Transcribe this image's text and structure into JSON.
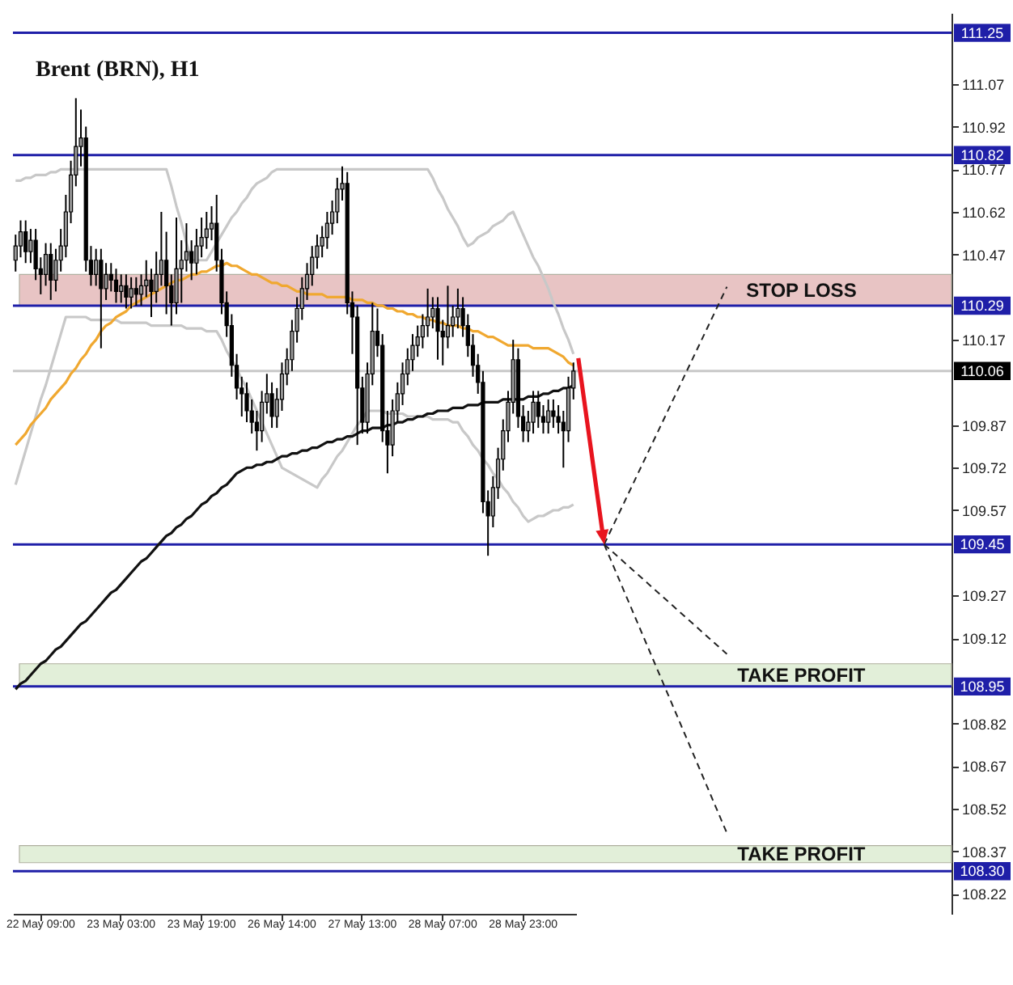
{
  "chart_data": {
    "type": "candlestick",
    "title": "Brent (BRN), H1",
    "categories": [
      null,
      null,
      null,
      null,
      null,
      "22 May 09:00",
      null,
      null,
      null,
      null,
      null,
      null,
      null,
      null,
      null,
      null,
      null,
      null,
      null,
      null,
      null,
      "23 May 03:00",
      null,
      null,
      null,
      null,
      null,
      null,
      null,
      null,
      null,
      null,
      null,
      null,
      null,
      null,
      null,
      "23 May 19:00",
      null,
      null,
      null,
      null,
      null,
      null,
      null,
      null,
      null,
      null,
      null,
      null,
      null,
      null,
      null,
      "26 May 14:00",
      null,
      null,
      null,
      null,
      null,
      null,
      null,
      null,
      null,
      null,
      null,
      null,
      null,
      null,
      null,
      "27 May 13:00",
      null,
      null,
      null,
      null,
      null,
      null,
      null,
      null,
      null,
      null,
      null,
      null,
      null,
      null,
      null,
      "28 May 07:00",
      null,
      null,
      null,
      null,
      null,
      null,
      null,
      null,
      null,
      null,
      null,
      null,
      null,
      null,
      null,
      "28 May 23:00",
      null,
      null,
      null,
      null,
      null,
      null,
      null,
      null,
      null,
      null
    ],
    "ohlc": [
      [
        110.45,
        110.54,
        110.41,
        110.5
      ],
      [
        110.5,
        110.59,
        110.46,
        110.55
      ],
      [
        110.55,
        110.59,
        110.44,
        110.48
      ],
      [
        110.48,
        110.56,
        110.44,
        110.52
      ],
      [
        110.52,
        110.56,
        110.38,
        110.42
      ],
      [
        110.42,
        110.46,
        110.33,
        110.4
      ],
      [
        110.4,
        110.51,
        110.36,
        110.47
      ],
      [
        110.47,
        110.51,
        110.31,
        110.38
      ],
      [
        110.38,
        110.49,
        110.34,
        110.45
      ],
      [
        110.45,
        110.56,
        110.41,
        110.5
      ],
      [
        110.5,
        110.68,
        110.46,
        110.62
      ],
      [
        110.62,
        110.8,
        110.58,
        110.75
      ],
      [
        110.75,
        111.02,
        110.71,
        110.85
      ],
      [
        110.85,
        110.98,
        110.78,
        110.88
      ],
      [
        110.88,
        110.92,
        110.41,
        110.45
      ],
      [
        110.45,
        110.5,
        110.36,
        110.4
      ],
      [
        110.4,
        110.49,
        110.36,
        110.45
      ],
      [
        110.45,
        110.49,
        110.14,
        110.35
      ],
      [
        110.35,
        110.44,
        110.31,
        110.4
      ],
      [
        110.4,
        110.44,
        110.34,
        110.38
      ],
      [
        110.38,
        110.42,
        110.3,
        110.34
      ],
      [
        110.34,
        110.4,
        110.3,
        110.36
      ],
      [
        110.36,
        110.4,
        110.28,
        110.32
      ],
      [
        110.32,
        110.39,
        110.28,
        110.35
      ],
      [
        110.35,
        110.39,
        110.29,
        110.33
      ],
      [
        110.33,
        110.4,
        110.29,
        110.36
      ],
      [
        110.36,
        110.45,
        110.32,
        110.38
      ],
      [
        110.38,
        110.42,
        110.25,
        110.34
      ],
      [
        110.34,
        110.48,
        110.3,
        110.4
      ],
      [
        110.4,
        110.62,
        110.36,
        110.45
      ],
      [
        110.45,
        110.55,
        110.26,
        110.36
      ],
      [
        110.36,
        110.4,
        110.22,
        110.3
      ],
      [
        110.3,
        110.6,
        110.26,
        110.42
      ],
      [
        110.42,
        110.52,
        110.3,
        110.45
      ],
      [
        110.45,
        110.58,
        110.41,
        110.48
      ],
      [
        110.48,
        110.52,
        110.38,
        110.44
      ],
      [
        110.44,
        110.56,
        110.4,
        110.5
      ],
      [
        110.5,
        110.6,
        110.46,
        110.53
      ],
      [
        110.53,
        110.62,
        110.49,
        110.56
      ],
      [
        110.56,
        110.64,
        110.52,
        110.58
      ],
      [
        110.58,
        110.68,
        110.41,
        110.45
      ],
      [
        110.45,
        110.49,
        110.26,
        110.3
      ],
      [
        110.3,
        110.34,
        110.18,
        110.22
      ],
      [
        110.22,
        110.26,
        110.04,
        110.08
      ],
      [
        110.08,
        110.12,
        109.96,
        110.0
      ],
      [
        110.0,
        110.04,
        109.9,
        109.98
      ],
      [
        109.98,
        110.02,
        109.88,
        109.92
      ],
      [
        109.92,
        109.96,
        109.84,
        109.88
      ],
      [
        109.88,
        109.92,
        109.78,
        109.85
      ],
      [
        109.85,
        109.99,
        109.81,
        109.95
      ],
      [
        109.95,
        110.05,
        109.91,
        109.98
      ],
      [
        109.98,
        110.02,
        109.86,
        109.9
      ],
      [
        109.9,
        110.0,
        109.86,
        109.96
      ],
      [
        109.96,
        110.09,
        109.92,
        110.05
      ],
      [
        110.05,
        110.14,
        110.01,
        110.1
      ],
      [
        110.1,
        110.24,
        110.06,
        110.2
      ],
      [
        110.2,
        110.32,
        110.16,
        110.28
      ],
      [
        110.28,
        110.39,
        110.24,
        110.35
      ],
      [
        110.35,
        110.44,
        110.31,
        110.4
      ],
      [
        110.4,
        110.5,
        110.36,
        110.46
      ],
      [
        110.46,
        110.54,
        110.42,
        110.5
      ],
      [
        110.5,
        110.57,
        110.46,
        110.53
      ],
      [
        110.53,
        110.62,
        110.49,
        110.58
      ],
      [
        110.58,
        110.66,
        110.54,
        110.62
      ],
      [
        110.62,
        110.74,
        110.58,
        110.7
      ],
      [
        110.7,
        110.78,
        110.66,
        110.72
      ],
      [
        110.72,
        110.76,
        110.26,
        110.3
      ],
      [
        110.3,
        110.34,
        110.12,
        110.25
      ],
      [
        110.25,
        110.29,
        109.8,
        110.0
      ],
      [
        110.0,
        110.04,
        109.84,
        109.88
      ],
      [
        109.88,
        110.09,
        109.84,
        110.05
      ],
      [
        110.05,
        110.3,
        110.01,
        110.2
      ],
      [
        110.2,
        110.28,
        110.11,
        110.15
      ],
      [
        110.15,
        110.19,
        109.81,
        109.85
      ],
      [
        109.85,
        109.92,
        109.7,
        109.8
      ],
      [
        109.8,
        109.96,
        109.76,
        109.92
      ],
      [
        109.92,
        110.02,
        109.88,
        109.98
      ],
      [
        109.98,
        110.09,
        109.94,
        110.05
      ],
      [
        110.05,
        110.14,
        110.01,
        110.1
      ],
      [
        110.1,
        110.19,
        110.06,
        110.15
      ],
      [
        110.15,
        110.22,
        110.11,
        110.18
      ],
      [
        110.18,
        110.26,
        110.14,
        110.22
      ],
      [
        110.22,
        110.35,
        110.18,
        110.25
      ],
      [
        110.25,
        110.32,
        110.21,
        110.28
      ],
      [
        110.28,
        110.32,
        110.1,
        110.2
      ],
      [
        110.2,
        110.24,
        110.08,
        110.18
      ],
      [
        110.18,
        110.36,
        110.14,
        110.22
      ],
      [
        110.22,
        110.29,
        110.18,
        110.25
      ],
      [
        110.25,
        110.35,
        110.21,
        110.28
      ],
      [
        110.28,
        110.32,
        110.18,
        110.22
      ],
      [
        110.22,
        110.26,
        110.11,
        110.15
      ],
      [
        110.15,
        110.19,
        110.04,
        110.08
      ],
      [
        110.08,
        110.12,
        109.98,
        110.02
      ],
      [
        110.02,
        110.06,
        109.56,
        109.6
      ],
      [
        109.6,
        109.64,
        109.41,
        109.55
      ],
      [
        109.55,
        109.69,
        109.51,
        109.65
      ],
      [
        109.65,
        109.79,
        109.61,
        109.75
      ],
      [
        109.75,
        109.89,
        109.71,
        109.85
      ],
      [
        109.85,
        109.99,
        109.81,
        109.95
      ],
      [
        109.95,
        110.17,
        109.91,
        110.1
      ],
      [
        110.1,
        110.14,
        109.86,
        109.9
      ],
      [
        109.9,
        109.94,
        109.81,
        109.85
      ],
      [
        109.85,
        109.92,
        109.81,
        109.88
      ],
      [
        109.88,
        109.99,
        109.84,
        109.95
      ],
      [
        109.95,
        109.99,
        109.86,
        109.9
      ],
      [
        109.9,
        109.94,
        109.84,
        109.88
      ],
      [
        109.88,
        109.96,
        109.84,
        109.92
      ],
      [
        109.92,
        109.96,
        109.86,
        109.9
      ],
      [
        109.9,
        109.94,
        109.84,
        109.88
      ],
      [
        109.88,
        109.92,
        109.72,
        109.85
      ],
      [
        109.85,
        110.04,
        109.81,
        110.0
      ],
      [
        110.0,
        110.09,
        109.96,
        110.06
      ]
    ],
    "colors": [
      "#999999",
      "#999999",
      "#000000",
      "#999999",
      "#000000",
      "#000000",
      "#999999",
      "#000000",
      "#999999",
      "#999999",
      "#999999",
      "#999999",
      "#999999",
      "#999999",
      "#000000",
      "#000000",
      "#999999",
      "#000000",
      "#999999",
      "#000000",
      "#000000",
      "#999999",
      "#000000",
      "#999999",
      "#000000",
      "#999999",
      "#999999",
      "#000000",
      "#999999",
      "#999999",
      "#000000",
      "#000000",
      "#999999",
      "#999999",
      "#999999",
      "#000000",
      "#999999",
      "#999999",
      "#999999",
      "#999999",
      "#000000",
      "#000000",
      "#000000",
      "#000000",
      "#000000",
      "#000000",
      "#000000",
      "#000000",
      "#000000",
      "#999999",
      "#999999",
      "#000000",
      "#999999",
      "#999999",
      "#999999",
      "#999999",
      "#999999",
      "#999999",
      "#999999",
      "#999999",
      "#999999",
      "#999999",
      "#999999",
      "#999999",
      "#999999",
      "#999999",
      "#000000",
      "#000000",
      "#000000",
      "#000000",
      "#999999",
      "#999999",
      "#000000",
      "#000000",
      "#000000",
      "#999999",
      "#999999",
      "#999999",
      "#999999",
      "#999999",
      "#999999",
      "#999999",
      "#999999",
      "#999999",
      "#000000",
      "#000000",
      "#999999",
      "#999999",
      "#999999",
      "#000000",
      "#000000",
      "#000000",
      "#000000",
      "#000000",
      "#000000",
      "#999999",
      "#999999",
      "#999999",
      "#999999",
      "#999999",
      "#000000",
      "#000000",
      "#999999",
      "#999999",
      "#000000",
      "#000000",
      "#999999",
      "#000000",
      "#000000",
      "#000000",
      "#999999",
      "#999999"
    ],
    "series": [
      {
        "type": "line",
        "color": "#c8c8c8",
        "values": [
          110.73,
          110.73,
          110.74,
          110.74,
          110.75,
          110.75,
          110.75,
          110.76,
          110.76,
          110.77,
          110.77,
          110.77,
          110.77,
          110.77,
          110.77,
          110.77,
          110.77,
          110.77,
          110.77,
          110.77,
          110.77,
          110.77,
          110.77,
          110.77,
          110.77,
          110.77,
          110.77,
          110.77,
          110.77,
          110.77,
          110.77,
          110.71,
          110.64,
          110.58,
          110.51,
          110.45,
          110.45,
          110.45,
          110.45,
          110.48,
          110.51,
          110.54,
          110.57,
          110.6,
          110.62,
          110.65,
          110.67,
          110.7,
          110.72,
          110.73,
          110.74,
          110.76,
          110.77,
          110.77,
          110.77,
          110.77,
          110.77,
          110.77,
          110.77,
          110.77,
          110.77,
          110.77,
          110.77,
          110.77,
          110.77,
          110.77,
          110.77,
          110.77,
          110.77,
          110.77,
          110.77,
          110.77,
          110.77,
          110.77,
          110.77,
          110.77,
          110.77,
          110.77,
          110.77,
          110.77,
          110.77,
          110.77,
          110.77,
          110.74,
          110.7,
          110.67,
          110.63,
          110.6,
          110.57,
          110.53,
          110.5,
          110.51,
          110.53,
          110.54,
          110.55,
          110.57,
          110.58,
          110.59,
          110.61,
          110.62,
          110.58,
          110.54,
          110.5,
          110.46,
          110.43,
          110.39,
          110.35,
          110.3,
          110.26,
          110.21,
          110.17,
          110.12
        ]
      },
      {
        "type": "line",
        "color": "#c8c8c8",
        "values": [
          109.66,
          109.72,
          109.78,
          109.84,
          109.9,
          109.96,
          110.01,
          110.07,
          110.13,
          110.19,
          110.25,
          110.25,
          110.25,
          110.25,
          110.25,
          110.24,
          110.24,
          110.24,
          110.24,
          110.24,
          110.24,
          110.23,
          110.23,
          110.23,
          110.23,
          110.23,
          110.23,
          110.22,
          110.22,
          110.22,
          110.22,
          110.22,
          110.22,
          110.22,
          110.21,
          110.21,
          110.21,
          110.21,
          110.2,
          110.2,
          110.2,
          110.17,
          110.13,
          110.1,
          110.07,
          110.03,
          110.0,
          109.96,
          109.92,
          109.88,
          109.84,
          109.8,
          109.76,
          109.72,
          109.71,
          109.7,
          109.69,
          109.68,
          109.67,
          109.66,
          109.65,
          109.68,
          109.7,
          109.73,
          109.76,
          109.78,
          109.81,
          109.84,
          109.87,
          109.89,
          109.92,
          109.92,
          109.92,
          109.92,
          109.91,
          109.91,
          109.91,
          109.91,
          109.9,
          109.9,
          109.9,
          109.9,
          109.9,
          109.89,
          109.89,
          109.89,
          109.89,
          109.88,
          109.88,
          109.85,
          109.83,
          109.8,
          109.78,
          109.75,
          109.73,
          109.7,
          109.68,
          109.65,
          109.63,
          109.6,
          109.58,
          109.55,
          109.53,
          109.54,
          109.55,
          109.55,
          109.56,
          109.57,
          109.57,
          109.58,
          109.58,
          109.59
        ]
      },
      {
        "type": "line",
        "color": "#f0a830",
        "values": [
          109.8,
          109.82,
          109.84,
          109.87,
          109.89,
          109.91,
          109.93,
          109.96,
          109.98,
          110.0,
          110.02,
          110.05,
          110.07,
          110.1,
          110.12,
          110.15,
          110.17,
          110.2,
          110.22,
          110.23,
          110.25,
          110.26,
          110.27,
          110.29,
          110.3,
          110.31,
          110.32,
          110.33,
          110.34,
          110.35,
          110.36,
          110.37,
          110.38,
          110.38,
          110.39,
          110.4,
          110.4,
          110.41,
          110.41,
          110.42,
          110.43,
          110.43,
          110.44,
          110.43,
          110.43,
          110.42,
          110.41,
          110.4,
          110.4,
          110.39,
          110.38,
          110.37,
          110.37,
          110.36,
          110.36,
          110.35,
          110.34,
          110.34,
          110.33,
          110.33,
          110.33,
          110.33,
          110.32,
          110.32,
          110.32,
          110.32,
          110.32,
          110.31,
          110.31,
          110.31,
          110.3,
          110.3,
          110.29,
          110.29,
          110.28,
          110.28,
          110.27,
          110.27,
          110.26,
          110.26,
          110.25,
          110.25,
          110.24,
          110.24,
          110.23,
          110.23,
          110.22,
          110.22,
          110.22,
          110.21,
          110.21,
          110.2,
          110.2,
          110.19,
          110.18,
          110.18,
          110.17,
          110.16,
          110.15,
          110.15,
          110.15,
          110.15,
          110.15,
          110.14,
          110.14,
          110.14,
          110.14,
          110.13,
          110.12,
          110.11,
          110.09,
          110.08
        ]
      },
      {
        "type": "line",
        "color": "#111111",
        "values": [
          108.94,
          108.96,
          108.97,
          108.99,
          109.01,
          109.03,
          109.04,
          109.06,
          109.08,
          109.09,
          109.11,
          109.13,
          109.15,
          109.17,
          109.18,
          109.2,
          109.22,
          109.24,
          109.26,
          109.28,
          109.29,
          109.31,
          109.33,
          109.35,
          109.37,
          109.39,
          109.4,
          109.42,
          109.44,
          109.46,
          109.48,
          109.49,
          109.51,
          109.52,
          109.54,
          109.55,
          109.57,
          109.59,
          109.6,
          109.62,
          109.63,
          109.65,
          109.66,
          109.68,
          109.7,
          109.71,
          109.72,
          109.72,
          109.73,
          109.73,
          109.74,
          109.74,
          109.75,
          109.76,
          109.76,
          109.77,
          109.77,
          109.78,
          109.78,
          109.79,
          109.79,
          109.8,
          109.81,
          109.81,
          109.82,
          109.82,
          109.83,
          109.83,
          109.84,
          109.85,
          109.85,
          109.86,
          109.86,
          109.86,
          109.87,
          109.87,
          109.88,
          109.88,
          109.89,
          109.89,
          109.9,
          109.9,
          109.91,
          109.91,
          109.92,
          109.92,
          109.92,
          109.93,
          109.93,
          109.93,
          109.94,
          109.94,
          109.94,
          109.95,
          109.95,
          109.95,
          109.95,
          109.96,
          109.96,
          109.96,
          109.96,
          109.96,
          109.97,
          109.97,
          109.97,
          109.98,
          109.98,
          109.99,
          109.99,
          110.0,
          110.0,
          110.01
        ]
      }
    ],
    "ylim": [
      108.15,
      111.32
    ],
    "yticks": [
      111.07,
      110.92,
      110.77,
      110.62,
      110.47,
      110.17,
      109.87,
      109.72,
      109.57,
      109.27,
      109.12,
      108.82,
      108.67,
      108.52,
      108.37,
      108.22
    ],
    "ref_lines": [
      {
        "axis": "y",
        "value": 111.25,
        "label": "111.25",
        "color": "#1f1fa8"
      },
      {
        "axis": "y",
        "value": 110.82,
        "label": "110.82",
        "color": "#1f1fa8"
      },
      {
        "axis": "y",
        "value": 110.29,
        "label": "110.29",
        "color": "#1f1fa8"
      },
      {
        "axis": "y",
        "value": 110.06,
        "label": "110.06",
        "color": "#c8c8c8"
      },
      {
        "axis": "y",
        "value": 109.45,
        "label": "109.45",
        "color": "#1f1fa8"
      },
      {
        "axis": "y",
        "value": 108.95,
        "label": "108.95",
        "color": "#1f1fa8"
      },
      {
        "axis": "y",
        "value": 108.3,
        "label": "108.30",
        "color": "#1f1fa8"
      }
    ],
    "bands": [
      {
        "axis": "y",
        "from": 110.29,
        "to": 110.4,
        "label": "STOP LOSS",
        "color": "#e8c4c4"
      },
      {
        "axis": "y",
        "from": 108.95,
        "to": 109.03,
        "label": "TAKE PROFIT",
        "color": "#e2efd9"
      },
      {
        "axis": "y",
        "from": 108.33,
        "to": 108.39,
        "label": "TAKE PROFIT",
        "color": "#e2efd9"
      }
    ]
  }
}
